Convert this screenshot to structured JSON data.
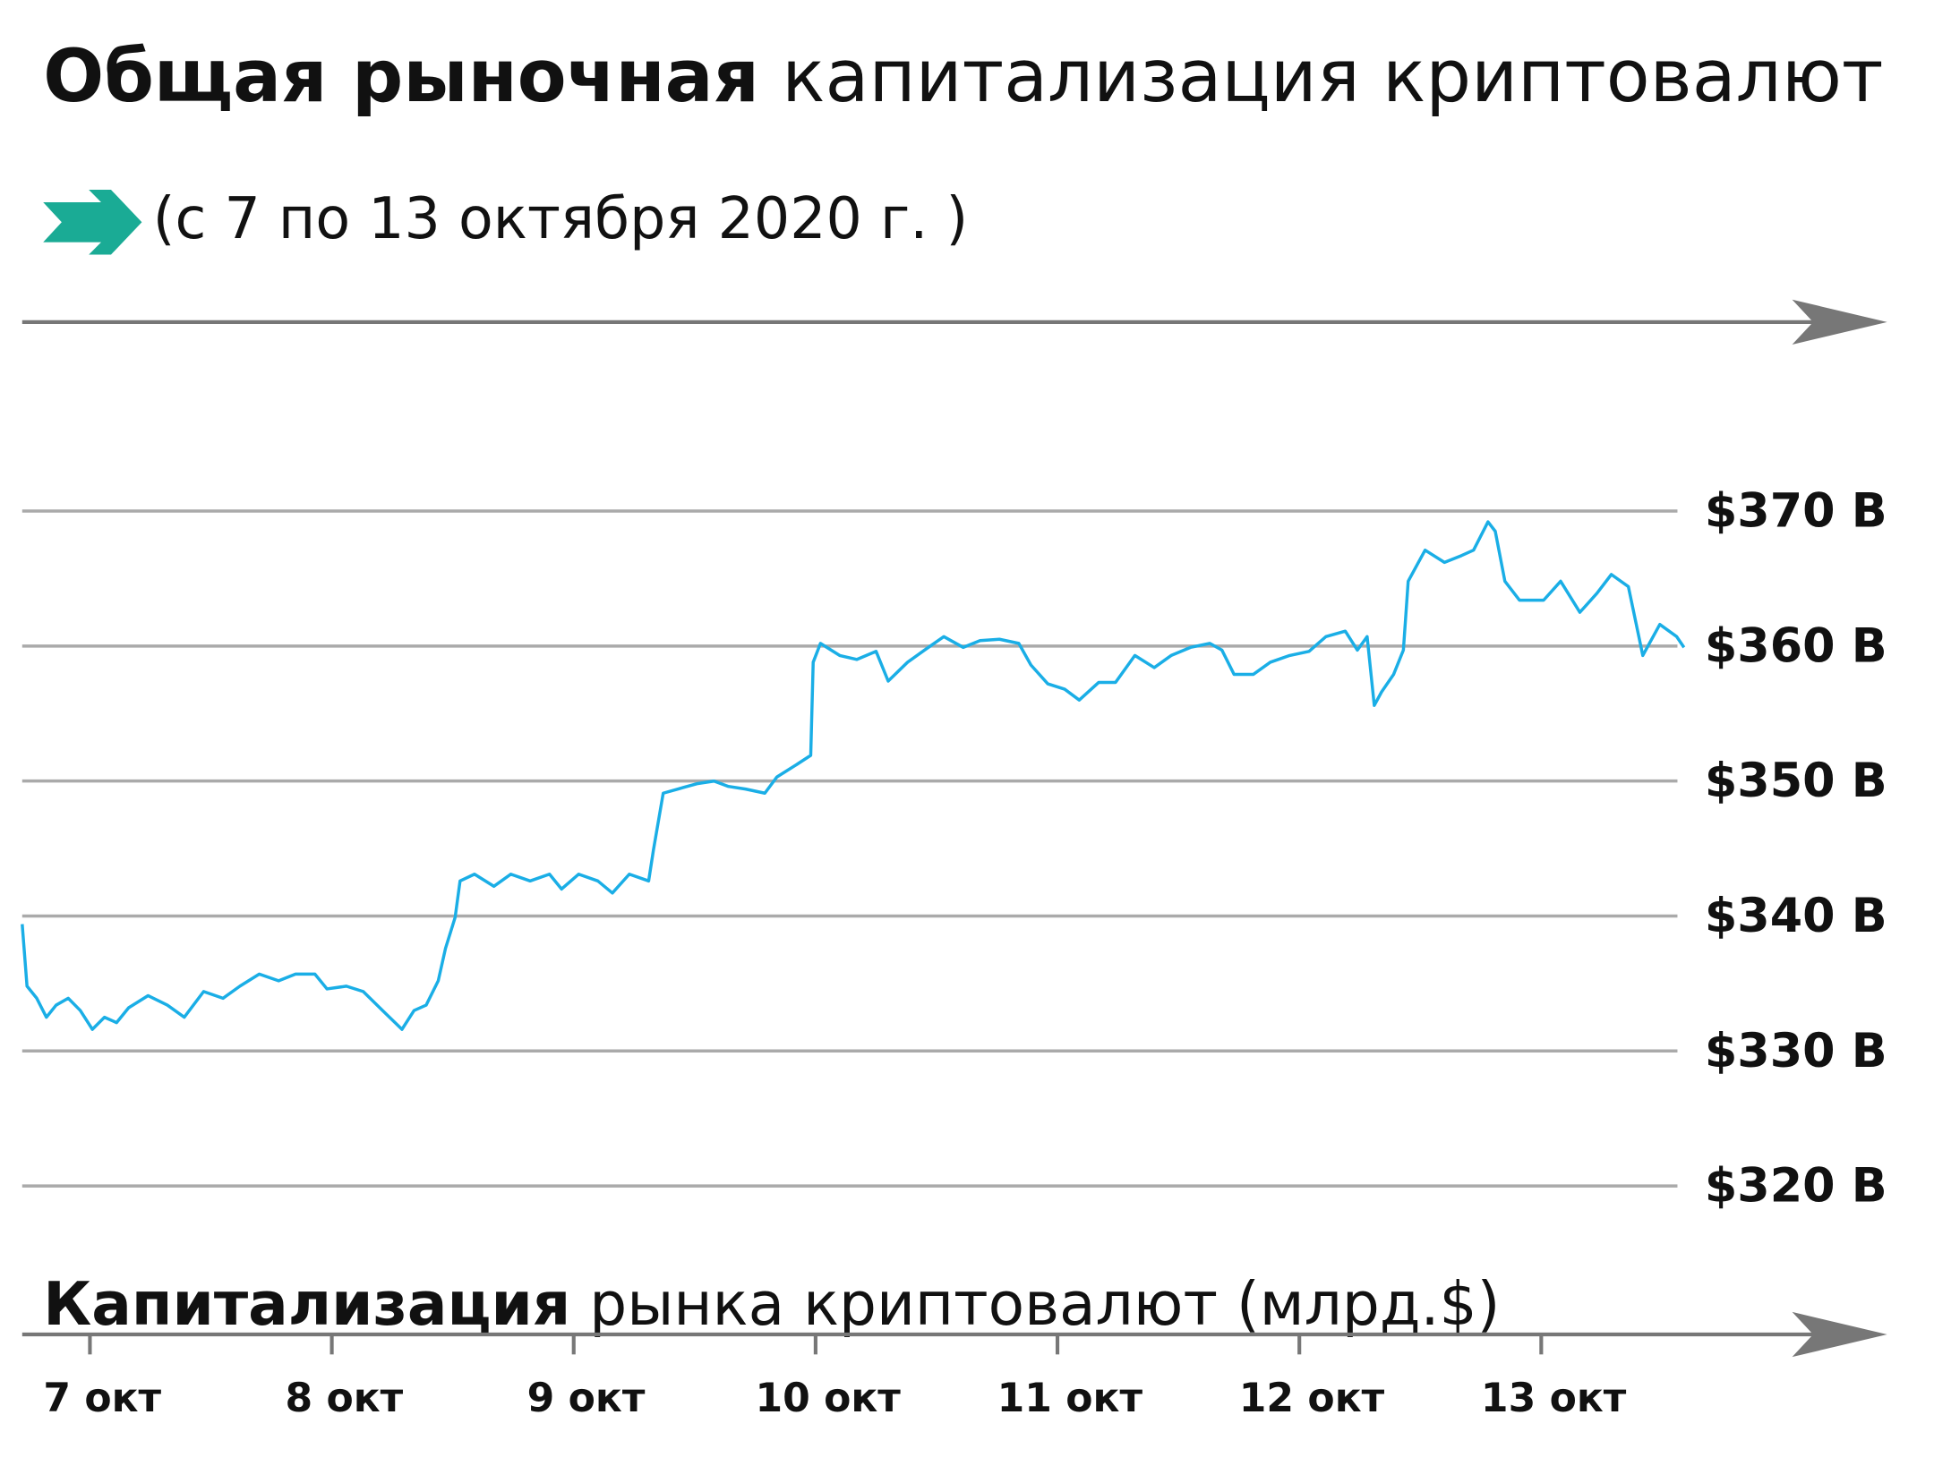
{
  "chart_data": {
    "type": "line",
    "title": {
      "bold": "Общая рыночная",
      "regular": "капитализация криптовалют"
    },
    "subtitle": "(с 7 по 13 октября 2020 г. )",
    "x_label": {
      "bold": "Капитализация",
      "regular": "рынка криптовалют (млрд.$)"
    },
    "color": "#1aaee6",
    "grid": true,
    "xlim": [
      6.72,
      14.43
    ],
    "ylim": [
      309,
      384
    ],
    "xticks": [
      {
        "value": 7,
        "label": "7 окт"
      },
      {
        "value": 8,
        "label": "8 окт"
      },
      {
        "value": 9,
        "label": "9 окт"
      },
      {
        "value": 10,
        "label": "10 окт"
      },
      {
        "value": 11,
        "label": "11 окт"
      },
      {
        "value": 12,
        "label": "12 окт"
      },
      {
        "value": 13,
        "label": "13 окт"
      }
    ],
    "yticks": [
      {
        "value": 370,
        "label": "$370 B"
      },
      {
        "value": 360,
        "label": "$360 B"
      },
      {
        "value": 350,
        "label": "$350 B"
      },
      {
        "value": 340,
        "label": "$340 B"
      },
      {
        "value": 330,
        "label": "$330 B"
      },
      {
        "value": 320,
        "label": "$320 B"
      }
    ],
    "x": [
      6.72,
      6.74,
      6.78,
      6.82,
      6.86,
      6.91,
      6.96,
      7.01,
      7.06,
      7.11,
      7.16,
      7.24,
      7.32,
      7.39,
      7.47,
      7.55,
      7.62,
      7.7,
      7.78,
      7.85,
      7.93,
      7.98,
      8.06,
      8.13,
      8.21,
      8.29,
      8.34,
      8.39,
      8.44,
      8.47,
      8.51,
      8.53,
      8.59,
      8.67,
      8.74,
      8.82,
      8.9,
      8.95,
      9.02,
      9.1,
      9.16,
      9.23,
      9.31,
      9.33,
      9.37,
      9.43,
      9.51,
      9.58,
      9.64,
      9.71,
      9.79,
      9.84,
      9.92,
      9.98,
      9.99,
      10.02,
      10.1,
      10.17,
      10.25,
      10.3,
      10.38,
      10.45,
      10.53,
      10.61,
      10.68,
      10.76,
      10.84,
      10.89,
      10.96,
      11.03,
      11.09,
      11.17,
      11.24,
      11.32,
      11.4,
      11.47,
      11.55,
      11.63,
      11.68,
      11.73,
      11.81,
      11.88,
      11.96,
      12.04,
      12.11,
      12.19,
      12.24,
      12.28,
      12.31,
      12.34,
      12.39,
      12.43,
      12.45,
      12.52,
      12.6,
      12.67,
      12.72,
      12.78,
      12.81,
      12.85,
      12.91,
      13.01,
      13.08,
      13.16,
      13.23,
      13.29,
      13.36,
      13.42,
      13.49,
      13.56,
      13.59
    ],
    "values": [
      339.4,
      334.8,
      333.9,
      332.5,
      333.4,
      333.9,
      333.0,
      331.6,
      332.5,
      332.1,
      333.2,
      334.1,
      333.4,
      332.5,
      334.4,
      333.9,
      334.8,
      335.7,
      335.2,
      335.7,
      335.7,
      334.6,
      334.8,
      334.4,
      333.0,
      331.6,
      333.0,
      333.4,
      335.2,
      337.6,
      339.9,
      342.6,
      343.1,
      342.2,
      343.1,
      342.6,
      343.1,
      342.0,
      343.1,
      342.6,
      341.7,
      343.1,
      342.6,
      344.9,
      349.1,
      349.4,
      349.8,
      350.0,
      349.6,
      349.4,
      349.1,
      350.3,
      351.2,
      351.9,
      358.8,
      360.2,
      359.3,
      359.0,
      359.6,
      357.4,
      358.8,
      359.7,
      360.7,
      359.9,
      360.4,
      360.5,
      360.2,
      358.6,
      357.2,
      356.8,
      356.0,
      357.3,
      357.3,
      359.3,
      358.4,
      359.3,
      359.9,
      360.2,
      359.7,
      357.9,
      357.9,
      358.8,
      359.3,
      359.6,
      360.7,
      361.1,
      359.7,
      360.7,
      355.6,
      356.6,
      357.9,
      359.7,
      364.8,
      367.1,
      366.2,
      366.7,
      367.1,
      369.2,
      368.5,
      364.8,
      363.4,
      363.4,
      364.8,
      362.5,
      363.9,
      365.3,
      364.4,
      359.3,
      361.6,
      360.7,
      359.9
    ]
  }
}
